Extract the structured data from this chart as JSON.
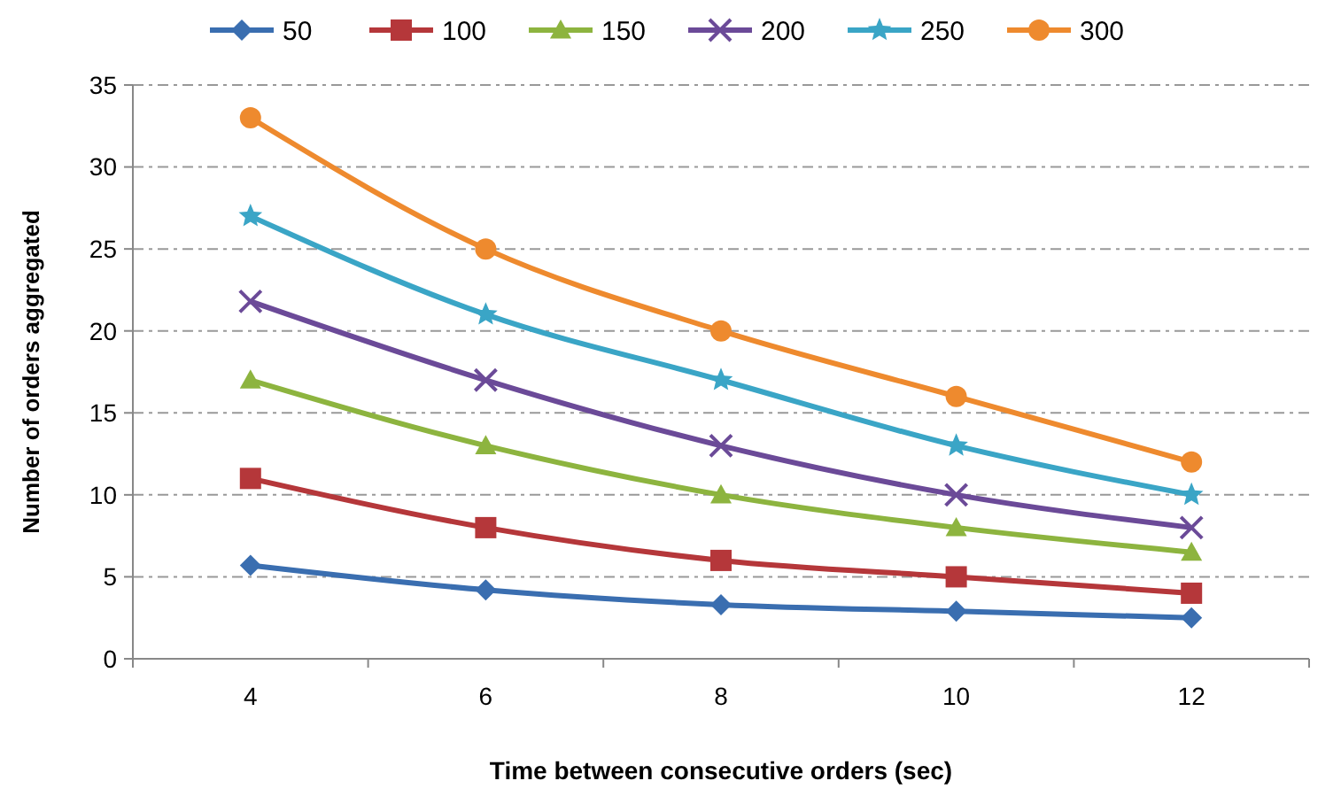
{
  "chart_data": {
    "type": "line",
    "xlabel": "Time  between consecutive orders (sec)",
    "ylabel": "Number  of orders aggregated",
    "categories": [
      "4",
      "6",
      "8",
      "10",
      "12"
    ],
    "ylim": [
      0,
      35
    ],
    "yticks": [
      0,
      5,
      10,
      15,
      20,
      25,
      30,
      35
    ],
    "grid": "y",
    "legend": "top",
    "series": [
      {
        "name": "50",
        "color": "#3a6eb0",
        "marker": "diamond",
        "values": [
          5.7,
          4.2,
          3.3,
          2.9,
          2.5
        ]
      },
      {
        "name": "100",
        "color": "#b5373a",
        "marker": "square",
        "values": [
          11,
          8,
          6,
          5,
          4
        ]
      },
      {
        "name": "150",
        "color": "#8db43f",
        "marker": "triangle",
        "values": [
          17,
          13,
          10,
          8,
          6.5
        ]
      },
      {
        "name": "200",
        "color": "#6b4a98",
        "marker": "cross",
        "values": [
          21.8,
          17,
          13,
          10,
          8
        ]
      },
      {
        "name": "250",
        "color": "#3aa5c6",
        "marker": "star",
        "values": [
          27,
          21,
          17,
          13,
          10
        ]
      },
      {
        "name": "300",
        "color": "#ee8a2e",
        "marker": "circle",
        "values": [
          33,
          25,
          20,
          16,
          12
        ]
      }
    ]
  }
}
